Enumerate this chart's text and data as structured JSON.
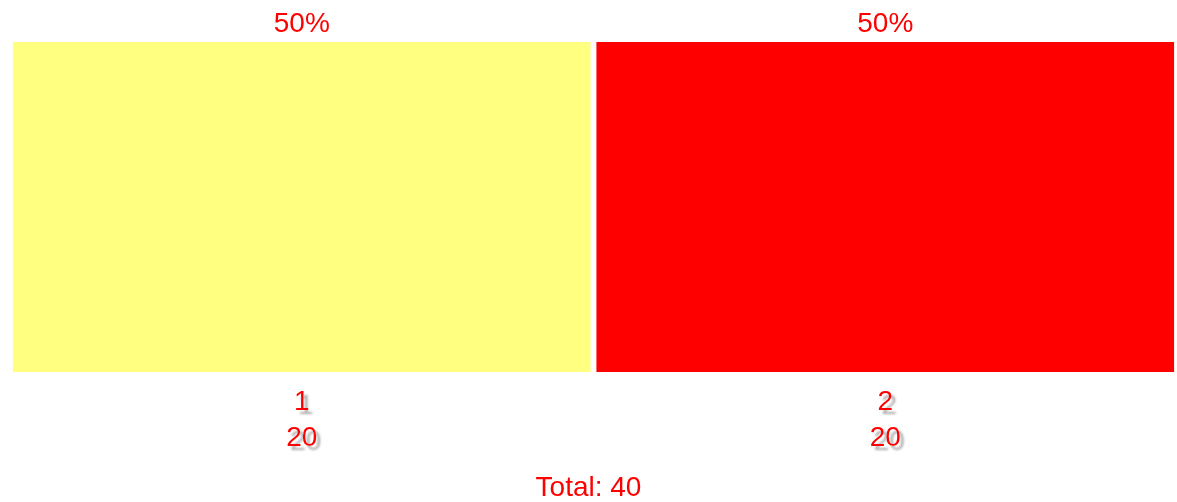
{
  "chart_data": {
    "type": "bar",
    "categories": [
      "1",
      "2"
    ],
    "values": [
      20,
      20
    ],
    "colors": [
      "#ffff80",
      "#ff0000"
    ],
    "data_labels": true,
    "annotations": [
      {
        "text": "50%",
        "x": "1",
        "y": 20
      },
      {
        "text": "50%",
        "x": "2",
        "y": 20
      },
      "Total: 40"
    ]
  }
}
